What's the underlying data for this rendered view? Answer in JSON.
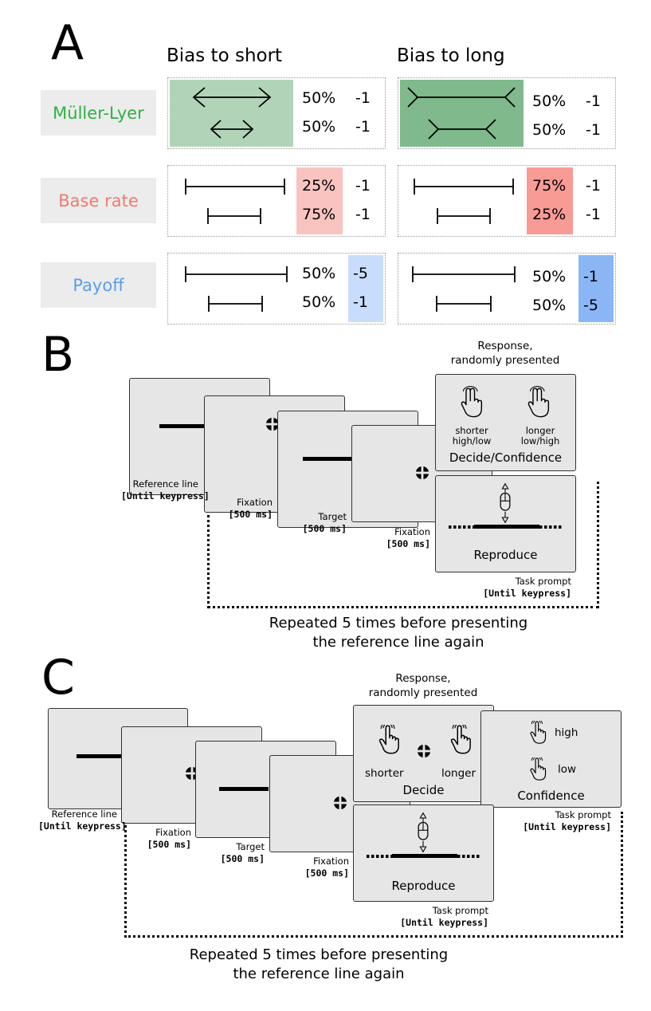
{
  "panelA": {
    "letter": "A",
    "col_short": "Bias to short",
    "col_long": "Bias to long",
    "rows": [
      {
        "label": "Müller-Lyer",
        "label_color": "#2eb043",
        "short": {
          "p1": "50%",
          "v1": "-1",
          "p2": "50%",
          "v2": "-1"
        },
        "long": {
          "p1": "50%",
          "v1": "-1",
          "p2": "50%",
          "v2": "-1"
        }
      },
      {
        "label": "Base rate",
        "label_color": "#f07a6e",
        "short": {
          "p1": "25%",
          "v1": "-1",
          "p2": "75%",
          "v2": "-1"
        },
        "long": {
          "p1": "75%",
          "v1": "-1",
          "p2": "25%",
          "v2": "-1"
        }
      },
      {
        "label": "Payoff",
        "label_color": "#5b9cf0",
        "short": {
          "p1": "50%",
          "v1": "-5",
          "p2": "50%",
          "v2": "-1"
        },
        "long": {
          "p1": "50%",
          "v1": "-1",
          "p2": "50%",
          "v2": "-5"
        }
      }
    ],
    "colors": {
      "ml_light": "#b1d4b8",
      "ml_dark": "#7fb98c",
      "br_light": "#f9c4c0",
      "br_dark": "#f79b94",
      "po_light": "#c8dcfb",
      "po_dark": "#8bb6f5"
    }
  },
  "panelB": {
    "letter": "B",
    "response_title": "Response,\nrandomly presented",
    "screens": {
      "reference": {
        "name": "Reference line",
        "time": "[Until keypress]"
      },
      "fixation1": {
        "name": "Fixation",
        "time": "[500 ms]"
      },
      "target": {
        "name": "Target",
        "time": "[500 ms]"
      },
      "fixation2": {
        "name": "Fixation",
        "time": "[500 ms]"
      }
    },
    "decide": {
      "label": "Decide/Confidence",
      "left_a": "shorter",
      "left_b": "high/low",
      "right_a": "longer",
      "right_b": "low/high"
    },
    "reproduce": {
      "label": "Reproduce"
    },
    "task_prompt": {
      "name": "Task prompt",
      "time": "[Until keypress]"
    },
    "repeat_text": "Repeated 5 times before presenting\nthe reference line again"
  },
  "panelC": {
    "letter": "C",
    "response_title": "Response,\nrandomly presented",
    "screens": {
      "reference": {
        "name": "Reference line",
        "time": "[Until keypress]"
      },
      "fixation1": {
        "name": "Fixation",
        "time": "[500 ms]"
      },
      "target": {
        "name": "Target",
        "time": "[500 ms]"
      },
      "fixation2": {
        "name": "Fixation",
        "time": "[500 ms]"
      }
    },
    "decide": {
      "label": "Decide",
      "left": "shorter",
      "right": "longer"
    },
    "confidence": {
      "label": "Confidence",
      "high": "high",
      "low": "low"
    },
    "confidence_prompt": {
      "name": "Task prompt",
      "time": "[Until keypress]"
    },
    "reproduce": {
      "label": "Reproduce"
    },
    "task_prompt": {
      "name": "Task prompt",
      "time": "[Until keypress]"
    },
    "repeat_text": "Repeated 5 times before presenting\nthe reference line again"
  }
}
